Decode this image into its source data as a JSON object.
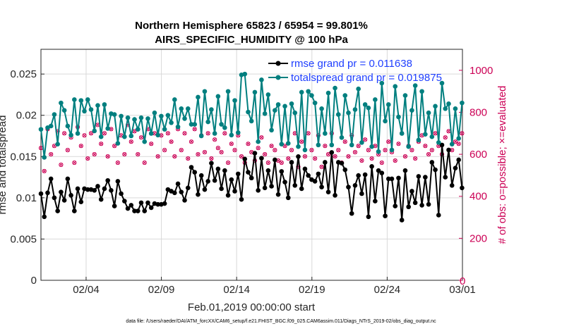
{
  "chart_data": {
    "type": "line",
    "title_line1": "Northern Hemisphere 65823 / 65954 = 99.801%",
    "title_line2": "AIRS_SPECIFIC_HUMIDITY @ 100 hPa",
    "xlabel": "Feb.01,2019 00:00:00 start",
    "ylabel_left": "rmse and totalspread",
    "ylabel_right": "# of obs: o=possible; ×=evaluated",
    "xlim": [
      0,
      28
    ],
    "ylim_left": [
      0,
      0.028
    ],
    "ylim_right": [
      0,
      1100
    ],
    "x_ticks": [
      {
        "label": "02/04",
        "day": 3
      },
      {
        "label": "02/09",
        "day": 8
      },
      {
        "label": "02/14",
        "day": 13
      },
      {
        "label": "02/19",
        "day": 18
      },
      {
        "label": "02/24",
        "day": 23
      },
      {
        "label": "03/01",
        "day": 28
      }
    ],
    "y_ticks_left": [
      "0",
      "0.005",
      "0.01",
      "0.015",
      "0.02",
      "0.025"
    ],
    "y_tick_values_left": [
      0,
      0.005,
      0.01,
      0.015,
      0.02,
      0.025
    ],
    "y_ticks_right": [
      "0",
      "200",
      "400",
      "600",
      "800",
      "1000"
    ],
    "y_tick_values_right": [
      0,
      200,
      400,
      600,
      800,
      1000
    ],
    "series": [
      {
        "name": "rmse",
        "legend": "rmse grand pr = 0.011638",
        "color": "#000000",
        "values": [
          0.0105,
          0.0077,
          0.0106,
          0.0123,
          0.01,
          0.0084,
          0.0107,
          0.0097,
          0.0123,
          0.0103,
          0.0084,
          0.0111,
          0.0095,
          0.0111,
          0.011,
          0.011,
          0.0109,
          0.0114,
          0.0098,
          0.0111,
          0.0121,
          0.0109,
          0.009,
          0.012,
          0.0105,
          0.0096,
          0.0087,
          0.0091,
          0.0084,
          0.0084,
          0.0094,
          0.0084,
          0.0094,
          0.0088,
          0.0093,
          0.0092,
          0.0092,
          0.0093,
          0.011,
          0.0108,
          0.0106,
          0.0117,
          0.0107,
          0.0097,
          0.0112,
          0.0137,
          0.0131,
          0.0104,
          0.0127,
          0.011,
          0.012,
          0.0142,
          0.0121,
          0.0135,
          0.0111,
          0.0133,
          0.0103,
          0.0122,
          0.0108,
          0.0129,
          0.0098,
          0.0147,
          0.0131,
          0.0124,
          0.0154,
          0.0109,
          0.0148,
          0.0112,
          0.0133,
          0.0114,
          0.0146,
          0.0104,
          0.0132,
          0.0119,
          0.01,
          0.0143,
          0.0115,
          0.015,
          0.0111,
          0.0135,
          0.0127,
          0.0122,
          0.012,
          0.0129,
          0.0113,
          0.0143,
          0.0107,
          0.0155,
          0.0103,
          0.0143,
          0.0142,
          0.0134,
          0.0113,
          0.0081,
          0.0115,
          0.0127,
          0.0105,
          0.0128,
          0.0077,
          0.0138,
          0.0096,
          0.0133,
          0.013,
          0.0078,
          0.0123,
          0.0123,
          0.009,
          0.0124,
          0.0073,
          0.0133,
          0.0089,
          0.0108,
          0.0094,
          0.0126,
          0.0091,
          0.0125,
          0.0092,
          0.0143,
          0.0134,
          0.0079,
          0.0164,
          0.0125,
          0.0158,
          0.0115,
          0.0136,
          0.0146,
          0.0112,
          0.0162,
          0.0133,
          0.0157,
          0.0118
        ],
        "x_start": 0.0,
        "x_step": 0.222
      },
      {
        "name": "totalspread",
        "legend": "totalspread grand pr = 0.019875",
        "color": "#007f7f",
        "values": [
          0.0183,
          0.0149,
          0.0185,
          0.0187,
          0.0201,
          0.0165,
          0.0215,
          0.0206,
          0.0187,
          0.0176,
          0.0219,
          0.0178,
          0.0218,
          0.0205,
          0.0219,
          0.0207,
          0.0181,
          0.0212,
          0.0174,
          0.0213,
          0.0184,
          0.0202,
          0.0201,
          0.0166,
          0.0199,
          0.0174,
          0.0197,
          0.0175,
          0.0195,
          0.0183,
          0.0197,
          0.0168,
          0.0196,
          0.0178,
          0.0203,
          0.0176,
          0.0199,
          0.0183,
          0.02,
          0.0191,
          0.0219,
          0.0186,
          0.0208,
          0.0196,
          0.0208,
          0.0189,
          0.0189,
          0.0222,
          0.0175,
          0.0229,
          0.0192,
          0.0207,
          0.0178,
          0.0223,
          0.0189,
          0.0185,
          0.0229,
          0.0176,
          0.0218,
          0.0179,
          0.0249,
          0.025,
          0.0204,
          0.0193,
          0.0228,
          0.0168,
          0.0243,
          0.0202,
          0.0225,
          0.0182,
          0.0206,
          0.0213,
          0.0165,
          0.0211,
          0.0166,
          0.0214,
          0.0203,
          0.0162,
          0.0228,
          0.0158,
          0.0229,
          0.0224,
          0.0215,
          0.0164,
          0.0208,
          0.0178,
          0.0227,
          0.0164,
          0.0233,
          0.0201,
          0.0173,
          0.0224,
          0.0203,
          0.0164,
          0.0207,
          0.0232,
          0.0167,
          0.0213,
          0.0209,
          0.0162,
          0.0219,
          0.0156,
          0.0239,
          0.0193,
          0.0213,
          0.0158,
          0.0235,
          0.0198,
          0.0178,
          0.0224,
          0.0162,
          0.0206,
          0.0236,
          0.017,
          0.0229,
          0.0177,
          0.0203,
          0.0174,
          0.0211,
          0.0167,
          0.0239,
          0.0208,
          0.0214,
          0.0165,
          0.0208,
          0.0172,
          0.0215,
          0.0183,
          0.0239,
          0.0178,
          0.0223
        ],
        "x_start": 0.0,
        "x_step": 0.222
      }
    ],
    "obs_possible": {
      "color": "#cc0055",
      "values": [
        630,
        520,
        720,
        600,
        640,
        710,
        550,
        700,
        620,
        680,
        560,
        730,
        640,
        690,
        580,
        700,
        600,
        740,
        650,
        700,
        590,
        720,
        640,
        560,
        690,
        600,
        740,
        660,
        710,
        600,
        680,
        560,
        720,
        650,
        700,
        590,
        690,
        620,
        700,
        660,
        590,
        720,
        620,
        700,
        580,
        660,
        720,
        600,
        690,
        610,
        700,
        580,
        670,
        630,
        610,
        700,
        560,
        650,
        620,
        690,
        590,
        560,
        650,
        610,
        570,
        630,
        680,
        600,
        560,
        640,
        620,
        570,
        560,
        640,
        580,
        620,
        700,
        540,
        660,
        590,
        700,
        620,
        580,
        690,
        540,
        640,
        600,
        700,
        590,
        620,
        560,
        660,
        590,
        690,
        610,
        640,
        570,
        670,
        620,
        580,
        640,
        600,
        560,
        620,
        660,
        610,
        570,
        650,
        700,
        590,
        640,
        620,
        580,
        660,
        690,
        640,
        600,
        620,
        700,
        640,
        600,
        680,
        710,
        620,
        660,
        650,
        700,
        640,
        700,
        640,
        680
      ],
      "x_start": 0.0,
      "x_step": 0.222
    },
    "obs_evaluated": {
      "color": "#cc0055",
      "values": [
        630,
        520,
        720,
        600,
        640,
        710,
        550,
        700,
        620,
        680,
        560,
        730,
        640,
        690,
        580,
        700,
        600,
        740,
        650,
        700,
        590,
        720,
        640,
        560,
        690,
        600,
        740,
        660,
        710,
        600,
        680,
        560,
        720,
        650,
        700,
        590,
        690,
        620,
        700,
        660,
        590,
        720,
        620,
        700,
        580,
        660,
        720,
        600,
        690,
        610,
        700,
        580,
        670,
        630,
        610,
        700,
        560,
        650,
        620,
        690,
        590,
        560,
        650,
        610,
        570,
        630,
        680,
        600,
        560,
        640,
        620,
        570,
        560,
        640,
        580,
        620,
        700,
        540,
        660,
        590,
        700,
        620,
        580,
        690,
        540,
        640,
        600,
        700,
        590,
        620,
        560,
        660,
        590,
        690,
        610,
        640,
        570,
        670,
        620,
        580,
        640,
        600,
        560,
        620,
        660,
        610,
        570,
        650,
        700,
        590,
        640,
        620,
        580,
        660,
        690,
        640,
        600,
        620,
        700,
        640,
        600,
        680,
        710,
        620,
        660,
        650,
        700,
        640,
        700,
        640,
        680
      ],
      "x_start": 0.0,
      "x_step": 0.222
    },
    "obs_zero_label": "0",
    "legend_position": "top-right",
    "grid": true
  },
  "footer": "data file: /Users/raeder/DAI/ATM_forcXX/CAM6_setup/f.e21.FHIST_BGC.f09_025.CAM6assim.011/Diags_NTrS_2019-02/obs_diag_output.nc"
}
